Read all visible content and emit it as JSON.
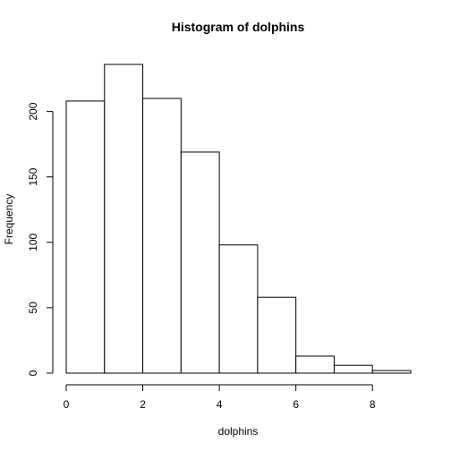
{
  "chart_data": {
    "type": "bar",
    "title": "Histogram of dolphins",
    "xlabel": "dolphins",
    "ylabel": "Frequency",
    "bin_edges": [
      0,
      1,
      2,
      3,
      4,
      5,
      6,
      7,
      8,
      9
    ],
    "values": [
      208,
      236,
      210,
      169,
      98,
      58,
      13,
      6,
      2
    ],
    "xlim": [
      0,
      9
    ],
    "ylim": [
      0,
      236
    ],
    "x_ticks": [
      0,
      2,
      4,
      6,
      8
    ],
    "y_ticks": [
      0,
      50,
      100,
      150,
      200
    ],
    "grid": false,
    "colors": {
      "bar_fill": "#ffffff",
      "bar_stroke": "#000000"
    }
  }
}
